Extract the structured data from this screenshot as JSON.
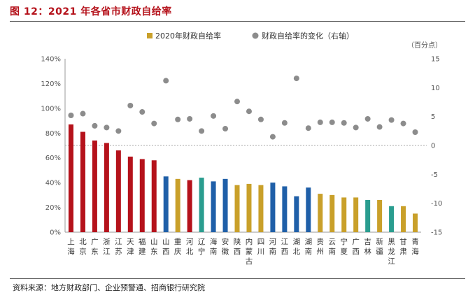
{
  "title": "图 12：2021 年各省市财政自给率",
  "source": "资料来源：地方财政部门、企业预警通、招商银行研究院",
  "chart_data": {
    "type": "bar",
    "legend": {
      "placement": "top",
      "entries": [
        "2020年财政自给率",
        "财政自给率的变化（右轴）"
      ]
    },
    "right_axis_unit": "（百分点）",
    "ylim": [
      0,
      140
    ],
    "y_ticks": [
      "0%",
      "20%",
      "40%",
      "60%",
      "80%",
      "100%",
      "120%",
      "140%"
    ],
    "y2lim": [
      -15,
      15
    ],
    "y2_ticks": [
      "-15",
      "-10",
      "-5",
      "0",
      "5",
      "10",
      "15"
    ],
    "categories": [
      "上海",
      "北京",
      "广东",
      "浙江",
      "江苏",
      "天津",
      "福建",
      "山东",
      "山西",
      "重庆",
      "河北",
      "辽宁",
      "海南",
      "安徽",
      "陕西",
      "内蒙古",
      "四川",
      "河南",
      "江西",
      "湖北",
      "湖南",
      "贵州",
      "云南",
      "宁夏",
      "广西",
      "吉林",
      "新疆",
      "黑龙江",
      "甘肃",
      "青海"
    ],
    "series": [
      {
        "name": "2020年财政自给率",
        "type": "bar",
        "values": [
          87,
          81,
          74,
          72,
          66,
          61,
          59,
          58,
          45,
          43,
          42,
          44,
          41,
          43,
          38,
          39,
          38,
          40,
          37,
          29,
          36,
          31,
          30,
          28,
          28,
          26,
          26,
          21,
          21,
          15
        ]
      },
      {
        "name": "财政自给率的变化（右轴）",
        "type": "scatter",
        "axis": "right",
        "values": [
          5.2,
          5.5,
          3.4,
          3.1,
          2.5,
          6.9,
          5.8,
          3.8,
          11.2,
          4.5,
          4.6,
          2.5,
          5.1,
          2.9,
          7.6,
          5.9,
          4.5,
          1.5,
          3.9,
          11.6,
          3.0,
          4.0,
          4.0,
          3.9,
          3.1,
          4.6,
          3.2,
          4.4,
          3.8,
          2.3
        ]
      }
    ],
    "colors": {
      "red": "#b5121b",
      "gold": "#c9a02a",
      "blue": "#1f5fa8",
      "teal": "#2a9d8f",
      "dot": "#8c8c8c"
    },
    "bar_colors": [
      "red",
      "red",
      "red",
      "red",
      "red",
      "red",
      "red",
      "red",
      "blue",
      "gold",
      "red",
      "teal",
      "blue",
      "blue",
      "gold",
      "gold",
      "gold",
      "blue",
      "blue",
      "blue",
      "blue",
      "gold",
      "gold",
      "gold",
      "gold",
      "teal",
      "gold",
      "teal",
      "gold",
      "gold"
    ]
  }
}
